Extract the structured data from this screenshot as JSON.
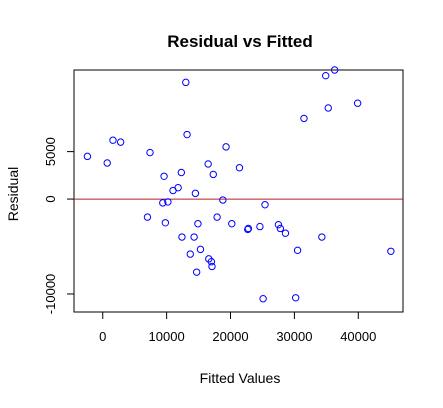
{
  "chart_data": {
    "type": "scatter",
    "title": "Residual vs Fitted",
    "xlabel": "Fitted Values",
    "ylabel": "Residual",
    "xlim": [
      -4500,
      47000
    ],
    "ylim": [
      -11900,
      13600
    ],
    "x_ticks": [
      0,
      10000,
      20000,
      30000,
      40000
    ],
    "x_tick_labels": [
      "0",
      "10000",
      "20000",
      "30000",
      "40000"
    ],
    "y_ticks": [
      -10000,
      0,
      5000
    ],
    "y_tick_labels": [
      "-10000",
      "0",
      "5000"
    ],
    "grid": false,
    "reference_line": {
      "y": 0,
      "color": "#b22222"
    },
    "point_color": "#0000ff",
    "series": [
      {
        "points": [
          [
            -2400,
            4500
          ],
          [
            700,
            3800
          ],
          [
            1600,
            6200
          ],
          [
            2800,
            6000
          ],
          [
            7000,
            -1900
          ],
          [
            7400,
            4900
          ],
          [
            9400,
            -400
          ],
          [
            9600,
            2400
          ],
          [
            9800,
            -2500
          ],
          [
            10200,
            -300
          ],
          [
            11000,
            900
          ],
          [
            11800,
            1200
          ],
          [
            12300,
            2800
          ],
          [
            12400,
            -4000
          ],
          [
            13000,
            12300
          ],
          [
            13200,
            6800
          ],
          [
            13700,
            -5800
          ],
          [
            14300,
            -4000
          ],
          [
            14500,
            600
          ],
          [
            14700,
            -7700
          ],
          [
            14900,
            -2600
          ],
          [
            15300,
            -5300
          ],
          [
            16500,
            3700
          ],
          [
            16600,
            -6300
          ],
          [
            17000,
            -6600
          ],
          [
            17100,
            -7100
          ],
          [
            17300,
            2600
          ],
          [
            17900,
            -1900
          ],
          [
            18800,
            -100
          ],
          [
            19300,
            5500
          ],
          [
            20200,
            -2600
          ],
          [
            21400,
            3300
          ],
          [
            22700,
            -3200
          ],
          [
            22800,
            -3100
          ],
          [
            24600,
            -2900
          ],
          [
            25100,
            -10500
          ],
          [
            25400,
            -600
          ],
          [
            27500,
            -2700
          ],
          [
            27800,
            -3100
          ],
          [
            28600,
            -3600
          ],
          [
            30200,
            -10400
          ],
          [
            30500,
            -5400
          ],
          [
            31500,
            8500
          ],
          [
            34300,
            -4000
          ],
          [
            34900,
            13000
          ],
          [
            35300,
            9600
          ],
          [
            36300,
            13600
          ],
          [
            39900,
            10100
          ],
          [
            45100,
            -5500
          ]
        ]
      }
    ]
  }
}
